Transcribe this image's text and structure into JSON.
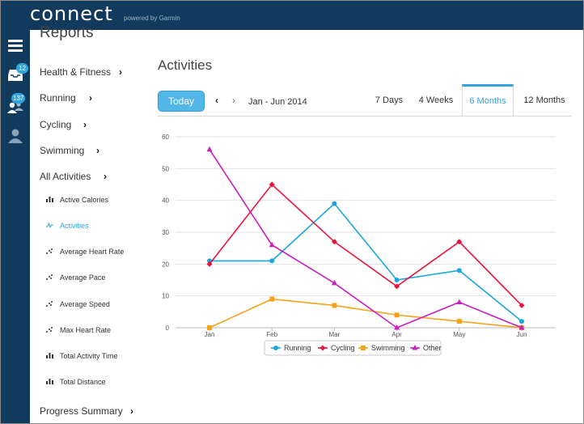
{
  "app": {
    "logo": "connect",
    "powered": "powered by Garmin"
  },
  "left_nav": {
    "inbox_badge": "12",
    "connections_badge": "137"
  },
  "reports": {
    "title": "Reports",
    "categories": [
      {
        "label": "Health & Fitness"
      },
      {
        "label": "Running"
      },
      {
        "label": "Cycling"
      },
      {
        "label": "Swimming"
      },
      {
        "label": "All Activities"
      }
    ],
    "sub_items": [
      {
        "label": "Active Calories",
        "icon": "bar-chart-icon"
      },
      {
        "label": "Activities",
        "icon": "line-chart-icon"
      },
      {
        "label": "Average Heart Rate",
        "icon": "scatter-icon"
      },
      {
        "label": "Average Pace",
        "icon": "scatter-icon"
      },
      {
        "label": "Average Speed",
        "icon": "scatter-icon"
      },
      {
        "label": "Max Heart Rate",
        "icon": "scatter-icon"
      },
      {
        "label": "Total Activity Time",
        "icon": "bar-chart-icon"
      },
      {
        "label": "Total Distance",
        "icon": "bar-chart-icon"
      }
    ],
    "bottom_item": "Progress Summary"
  },
  "main": {
    "title": "Activities",
    "today_label": "Today",
    "date_range": "Jan - Jun 2014",
    "tabs": [
      "7 Days",
      "4 Weeks",
      "6 Months",
      "12 Months"
    ],
    "active_tab": "6 Months"
  },
  "chart_data": {
    "type": "line",
    "categories": [
      "Jan",
      "Feb",
      "Mar",
      "Apr",
      "May",
      "Jun"
    ],
    "ylim": [
      0,
      60
    ],
    "yticks": [
      0,
      10,
      20,
      30,
      40,
      50,
      60
    ],
    "grid": true,
    "legend_position": "bottom",
    "series": [
      {
        "name": "Running",
        "color": "#1ba6dd",
        "marker": "circle",
        "values": [
          21,
          21,
          39,
          15,
          18,
          2
        ]
      },
      {
        "name": "Cycling",
        "color": "#e8143c",
        "marker": "diamond",
        "values": [
          20,
          45,
          27,
          13,
          27,
          7
        ]
      },
      {
        "name": "Swimming",
        "color": "#f5a21a",
        "marker": "square",
        "values": [
          0,
          9,
          7,
          4,
          2,
          0
        ]
      },
      {
        "name": "Other",
        "color": "#c81fc0",
        "marker": "triangle",
        "values": [
          56,
          26,
          14,
          0,
          8,
          0
        ]
      }
    ]
  }
}
